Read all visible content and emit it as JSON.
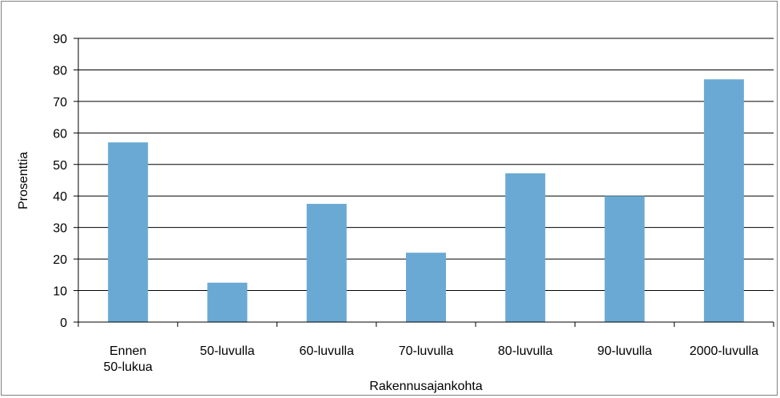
{
  "chart_data": {
    "type": "bar",
    "categories": [
      [
        "Ennen",
        "50-lukua"
      ],
      [
        "50-luvulla"
      ],
      [
        "60-luvulla"
      ],
      [
        "70-luvulla"
      ],
      [
        "80-luvulla"
      ],
      [
        "90-luvulla"
      ],
      [
        "2000-luvulla"
      ]
    ],
    "values": [
      57,
      12.5,
      37.5,
      22,
      47.2,
      40,
      77
    ],
    "xlabel": "Rakennusajankohta",
    "ylabel": "Prosenttia",
    "ylim": [
      0,
      90
    ],
    "yticks": [
      0,
      10,
      20,
      30,
      40,
      50,
      60,
      70,
      80,
      90
    ],
    "grid": true,
    "bar_color": "#6aa9d3",
    "legend": "none"
  }
}
